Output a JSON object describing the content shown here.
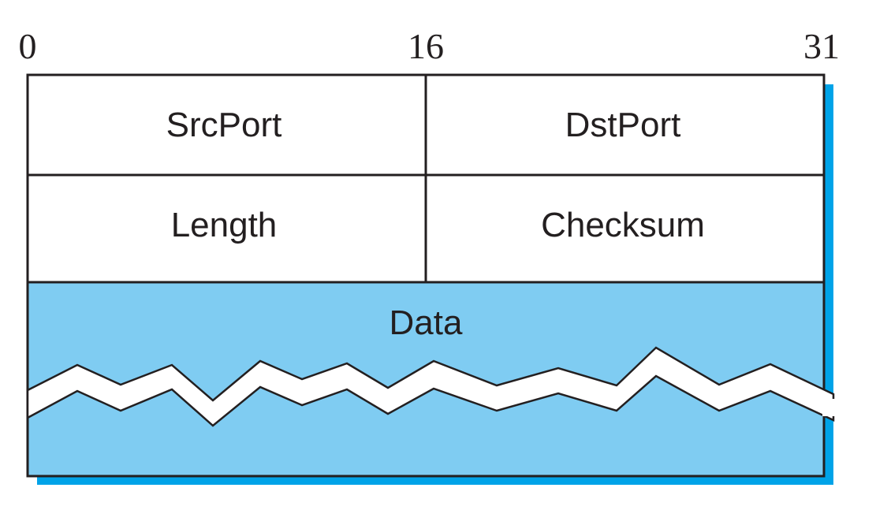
{
  "bit_positions": [
    "0",
    "16",
    "31"
  ],
  "rows": [
    {
      "left": "SrcPort",
      "right": "DstPort"
    },
    {
      "left": "Length",
      "right": "Checksum"
    }
  ],
  "data_label": "Data",
  "colors": {
    "data_fill": "#7fccf2",
    "shadow": "#00a3e8",
    "border": "#231f20",
    "background": "#ffffff"
  }
}
